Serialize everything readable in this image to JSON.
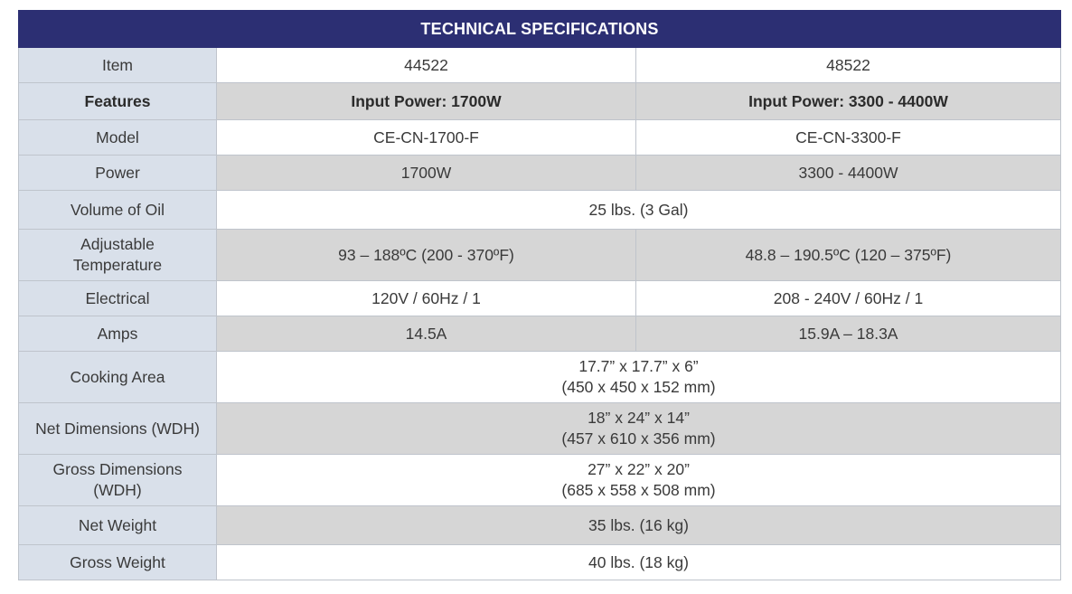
{
  "title": "TECHNICAL SPECIFICATIONS",
  "rows": {
    "item": {
      "label": "Item",
      "col1": "44522",
      "col2": "48522"
    },
    "features": {
      "label": "Features",
      "col1": "Input Power: 1700W",
      "col2": "Input Power: 3300 - 4400W"
    },
    "model": {
      "label": "Model",
      "col1": "CE-CN-1700-F",
      "col2": "CE-CN-3300-F"
    },
    "power": {
      "label": "Power",
      "col1": "1700W",
      "col2": "3300 - 4400W"
    },
    "volume_of_oil": {
      "label": "Volume of Oil",
      "value": "25 lbs. (3 Gal)"
    },
    "adjustable_temperature": {
      "label_line1": "Adjustable",
      "label_line2": "Temperature",
      "col1": "93 – 188ºC (200 - 370ºF)",
      "col2": "48.8 – 190.5ºC (120 – 375ºF)"
    },
    "electrical": {
      "label": "Electrical",
      "col1": "120V / 60Hz / 1",
      "col2": "208 - 240V / 60Hz / 1"
    },
    "amps": {
      "label": "Amps",
      "col1": "14.5A",
      "col2": "15.9A – 18.3A"
    },
    "cooking_area": {
      "label": "Cooking Area",
      "line1": "17.7” x 17.7” x 6”",
      "line2": "(450 x 450 x 152 mm)"
    },
    "net_dimensions": {
      "label": "Net Dimensions (WDH)",
      "line1": "18” x 24” x 14”",
      "line2": "(457 x 610 x 356 mm)"
    },
    "gross_dimensions": {
      "label_line1": "Gross Dimensions",
      "label_line2": "(WDH)",
      "line1": "27” x 22” x 20”",
      "line2": "(685 x 558 x 508 mm)"
    },
    "net_weight": {
      "label": "Net Weight",
      "value": "35 lbs. (16 kg)"
    },
    "gross_weight": {
      "label": "Gross Weight",
      "value": "40 lbs. (18 kg)"
    }
  },
  "colors": {
    "header_bg": "#2c2f73",
    "label_bg": "#d9e0ea",
    "grey_row_bg": "#d6d6d6",
    "border": "#bfc4cc"
  }
}
